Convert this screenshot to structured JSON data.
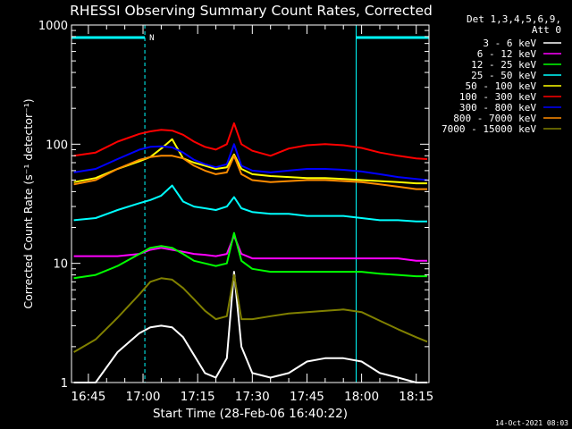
{
  "chart_data": {
    "type": "line",
    "title": "RHESSI Observing Summary Count Rates, Corrected",
    "ylabel": "Corrected Count Rate (s⁻¹ detector⁻¹)",
    "xlabel": "Start Time (28-Feb-06 16:40:22)",
    "y_scale": "log",
    "ylim": [
      1,
      1000
    ],
    "y_ticks": [
      1,
      10,
      100,
      1000
    ],
    "y_tick_labels": [
      "1",
      "10",
      "100",
      "1000"
    ],
    "xlim": [
      "16:40:22",
      "18:18:30"
    ],
    "x_ticks": [
      "16:45",
      "17:00",
      "17:15",
      "17:30",
      "17:45",
      "18:00",
      "18:15"
    ],
    "grid": false,
    "legend_header": [
      "Det 1,3,4,5,6,9,",
      "Att 0"
    ],
    "legend_placement": "right",
    "night_intervals": [
      [
        "16:40:22",
        "17:00:30"
      ],
      [
        "17:58:30",
        "18:18:30"
      ]
    ],
    "night_label": "N",
    "series": [
      {
        "name": "3 - 6 keV",
        "color": "#ffffff",
        "times": [
          "16:41",
          "16:47",
          "16:53",
          "16:59",
          "17:02",
          "17:05",
          "17:08",
          "17:11",
          "17:14",
          "17:17",
          "17:20",
          "17:23",
          "17:25",
          "17:27",
          "17:30",
          "17:35",
          "17:40",
          "17:45",
          "17:50",
          "17:55",
          "18:00",
          "18:05",
          "18:10",
          "18:15",
          "18:18"
        ],
        "values": [
          1,
          1,
          1.8,
          2.6,
          2.9,
          3.0,
          2.9,
          2.4,
          1.7,
          1.2,
          1.1,
          1.6,
          8.5,
          2.0,
          1.2,
          1.1,
          1.2,
          1.5,
          1.6,
          1.6,
          1.5,
          1.2,
          1.1,
          1,
          1
        ]
      },
      {
        "name": "6 - 12 keV",
        "color": "#ff00ff",
        "times": [
          "16:41",
          "16:47",
          "16:53",
          "16:59",
          "17:02",
          "17:05",
          "17:08",
          "17:11",
          "17:14",
          "17:17",
          "17:20",
          "17:23",
          "17:25",
          "17:27",
          "17:30",
          "17:35",
          "17:40",
          "17:45",
          "17:50",
          "17:55",
          "18:00",
          "18:05",
          "18:10",
          "18:15",
          "18:18"
        ],
        "values": [
          11.5,
          11.5,
          11.5,
          12,
          13,
          13.5,
          13,
          12.5,
          12,
          11.8,
          11.5,
          12,
          17,
          12,
          11,
          11,
          11,
          11,
          11,
          11,
          11,
          11,
          11,
          10.5,
          10.5
        ]
      },
      {
        "name": "12 - 25 keV",
        "color": "#00ff00",
        "times": [
          "16:41",
          "16:47",
          "16:53",
          "16:59",
          "17:02",
          "17:05",
          "17:08",
          "17:11",
          "17:14",
          "17:17",
          "17:20",
          "17:23",
          "17:25",
          "17:27",
          "17:30",
          "17:35",
          "17:40",
          "17:45",
          "17:50",
          "17:55",
          "18:00",
          "18:05",
          "18:10",
          "18:15",
          "18:18"
        ],
        "values": [
          7.5,
          8,
          9.5,
          12,
          13.5,
          14,
          13.5,
          12,
          10.5,
          10,
          9.5,
          10,
          18,
          10.5,
          9,
          8.5,
          8.5,
          8.5,
          8.5,
          8.5,
          8.5,
          8.2,
          8,
          7.8,
          7.8
        ]
      },
      {
        "name": "25 - 50 keV",
        "color": "#00ffff",
        "times": [
          "16:41",
          "16:47",
          "16:53",
          "16:59",
          "17:02",
          "17:05",
          "17:08",
          "17:11",
          "17:14",
          "17:17",
          "17:20",
          "17:23",
          "17:25",
          "17:27",
          "17:30",
          "17:35",
          "17:40",
          "17:45",
          "17:50",
          "17:55",
          "18:00",
          "18:05",
          "18:10",
          "18:15",
          "18:18"
        ],
        "values": [
          23,
          24,
          28,
          32,
          34,
          37,
          45,
          33,
          30,
          29,
          28,
          30,
          36,
          29,
          27,
          26,
          26,
          25,
          25,
          25,
          24,
          23,
          23,
          22.5,
          22.5
        ]
      },
      {
        "name": "50 - 100 keV",
        "color": "#ffff00",
        "times": [
          "16:41",
          "16:47",
          "16:53",
          "16:59",
          "17:02",
          "17:05",
          "17:08",
          "17:11",
          "17:14",
          "17:17",
          "17:20",
          "17:23",
          "17:25",
          "17:27",
          "17:30",
          "17:35",
          "17:40",
          "17:45",
          "17:50",
          "17:55",
          "18:00",
          "18:05",
          "18:10",
          "18:15",
          "18:18"
        ],
        "values": [
          48,
          52,
          62,
          72,
          78,
          92,
          110,
          76,
          70,
          66,
          62,
          64,
          82,
          62,
          56,
          54,
          53,
          52,
          52,
          51,
          50,
          49,
          48,
          47,
          47
        ]
      },
      {
        "name": "100 - 300 keV",
        "color": "#ff0000",
        "times": [
          "16:41",
          "16:47",
          "16:53",
          "16:59",
          "17:02",
          "17:05",
          "17:08",
          "17:11",
          "17:14",
          "17:17",
          "17:20",
          "17:23",
          "17:25",
          "17:27",
          "17:30",
          "17:35",
          "17:40",
          "17:45",
          "17:50",
          "17:55",
          "18:00",
          "18:05",
          "18:10",
          "18:15",
          "18:18"
        ],
        "values": [
          80,
          85,
          105,
          122,
          128,
          132,
          130,
          120,
          105,
          95,
          90,
          100,
          150,
          100,
          88,
          80,
          92,
          98,
          100,
          98,
          93,
          85,
          80,
          76,
          75
        ]
      },
      {
        "name": "300 - 800 keV",
        "color": "#0000ff",
        "times": [
          "16:41",
          "16:47",
          "16:53",
          "16:59",
          "17:02",
          "17:05",
          "17:08",
          "17:11",
          "17:14",
          "17:17",
          "17:20",
          "17:23",
          "17:25",
          "17:27",
          "17:30",
          "17:35",
          "17:40",
          "17:45",
          "17:50",
          "17:55",
          "18:00",
          "18:05",
          "18:10",
          "18:15",
          "18:18"
        ],
        "values": [
          58,
          62,
          75,
          90,
          95,
          96,
          94,
          85,
          74,
          68,
          64,
          68,
          100,
          66,
          60,
          58,
          60,
          62,
          62,
          61,
          59,
          56,
          53,
          51,
          50
        ]
      },
      {
        "name": "800 - 7000 keV",
        "color": "#ff8c00",
        "times": [
          "16:41",
          "16:47",
          "16:53",
          "16:59",
          "17:02",
          "17:05",
          "17:08",
          "17:11",
          "17:14",
          "17:17",
          "17:20",
          "17:23",
          "17:25",
          "17:27",
          "17:30",
          "17:35",
          "17:40",
          "17:45",
          "17:50",
          "17:55",
          "18:00",
          "18:05",
          "18:10",
          "18:15",
          "18:18"
        ],
        "values": [
          46,
          50,
          62,
          74,
          78,
          80,
          80,
          76,
          66,
          60,
          56,
          58,
          80,
          56,
          50,
          48,
          49,
          50,
          50,
          49,
          48,
          46,
          44,
          42,
          42
        ]
      },
      {
        "name": "7000 - 15000 keV",
        "color": "#808000",
        "times": [
          "16:41",
          "16:47",
          "16:53",
          "16:59",
          "17:02",
          "17:05",
          "17:08",
          "17:11",
          "17:14",
          "17:17",
          "17:20",
          "17:23",
          "17:25",
          "17:27",
          "17:30",
          "17:35",
          "17:40",
          "17:45",
          "17:50",
          "17:55",
          "18:00",
          "18:05",
          "18:10",
          "18:15",
          "18:18"
        ],
        "values": [
          1.8,
          2.3,
          3.5,
          5.5,
          7,
          7.5,
          7.3,
          6.2,
          5,
          4,
          3.4,
          3.6,
          8,
          3.4,
          3.4,
          3.6,
          3.8,
          3.9,
          4,
          4.1,
          3.9,
          3.3,
          2.8,
          2.4,
          2.2
        ]
      }
    ],
    "footer_date": "14-Oct-2021 08:03"
  }
}
